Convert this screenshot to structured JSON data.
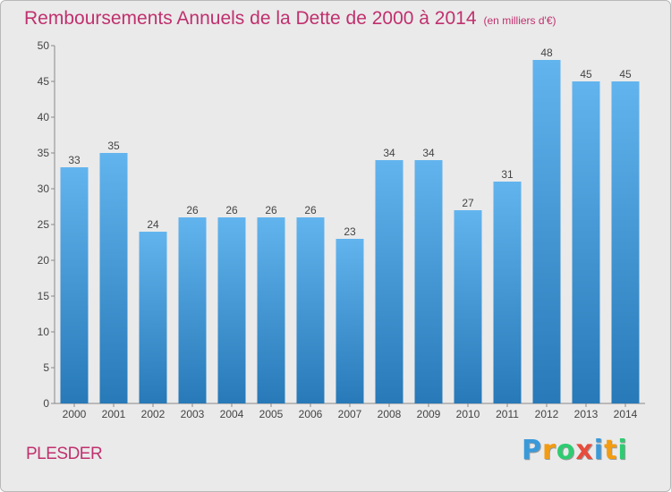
{
  "title": "Remboursements Annuels de la Dette de 2000 à 2014",
  "subtitle": "(en milliers d'€)",
  "town": "PLESDER",
  "logo": [
    "P",
    "r",
    "o",
    "x",
    "i",
    "t",
    "i"
  ],
  "logo_colors": [
    "#3a9ad9",
    "#f39c12",
    "#2ecc71",
    "#e74c3c",
    "#3a9ad9",
    "#f39c12",
    "#2ecc71"
  ],
  "colors": {
    "title": "#c0306e",
    "bar_top": "#62b4ee",
    "bar_bottom": "#2779b8",
    "background": "#eaeaea"
  },
  "chart_data": {
    "type": "bar",
    "categories": [
      "2000",
      "2001",
      "2002",
      "2003",
      "2004",
      "2005",
      "2006",
      "2007",
      "2008",
      "2009",
      "2010",
      "2011",
      "2012",
      "2013",
      "2014"
    ],
    "values": [
      33,
      35,
      24,
      26,
      26,
      26,
      26,
      23,
      34,
      34,
      27,
      31,
      48,
      45,
      45
    ],
    "title": "Remboursements Annuels de la Dette de 2000 à 2014",
    "xlabel": "",
    "ylabel": "",
    "ylim": [
      0,
      50
    ],
    "yticks": [
      0,
      5,
      10,
      15,
      20,
      25,
      30,
      35,
      40,
      45,
      50
    ],
    "grid": false,
    "data_labels": true
  }
}
